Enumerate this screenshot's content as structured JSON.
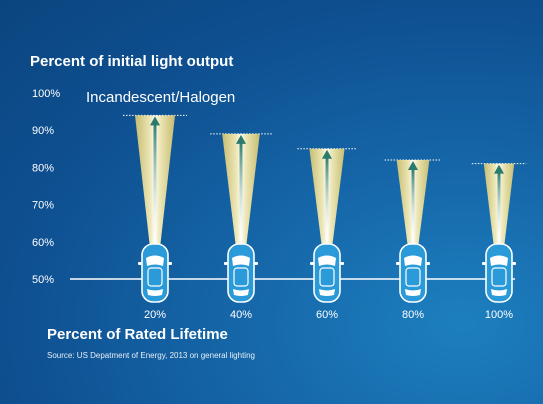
{
  "chart_data": {
    "type": "bar",
    "title": "Percent of initial light output",
    "xlabel": "Percent of Rated Lifetime",
    "ylabel": "",
    "series": [
      {
        "name": "Incandescent/Halogen",
        "values": [
          94,
          89,
          85,
          82,
          81
        ]
      }
    ],
    "categories": [
      "20%",
      "40%",
      "60%",
      "80%",
      "100%"
    ],
    "y_ticks": [
      "50%",
      "60%",
      "70%",
      "80%",
      "90%",
      "100%"
    ],
    "ylim": [
      50,
      100
    ],
    "grid": false,
    "legend": "top-left",
    "source": "Source: US Depatment of Energy, 2013 on general lighting",
    "colors": {
      "background": "#0e4f90",
      "beam": "#f3e39a",
      "beam_core": "#ffffff",
      "arrow": "#2b7a6e",
      "car": "#2a9ad8"
    }
  }
}
